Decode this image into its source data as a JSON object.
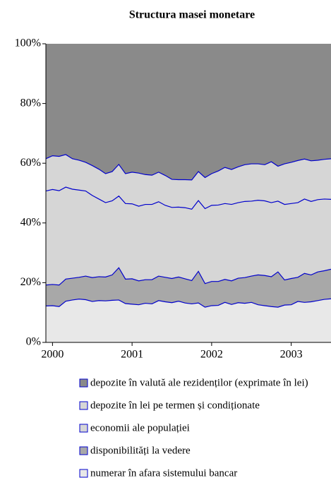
{
  "chart_data": {
    "type": "stacked_area",
    "title": "Structura masei monetare",
    "categories": [
      null,
      "2000",
      null,
      null,
      null,
      null,
      null,
      null,
      null,
      null,
      null,
      null,
      null,
      "2001",
      null,
      null,
      null,
      null,
      null,
      null,
      null,
      null,
      null,
      null,
      null,
      "2002",
      null,
      null,
      null,
      null,
      null,
      null,
      null,
      null,
      null,
      null,
      null,
      "2003",
      null,
      null,
      null,
      null,
      null,
      null
    ],
    "series": [
      {
        "name": "numerar în afara sistemului bancar",
        "color": "#e8e8e8",
        "values": [
          12.2,
          12.3,
          12.0,
          13.8,
          14.2,
          14.5,
          14.3,
          13.7,
          14.0,
          13.9,
          14.1,
          14.2,
          13.0,
          12.8,
          12.6,
          13.1,
          12.9,
          14.0,
          13.6,
          13.3,
          13.8,
          13.2,
          12.9,
          13.2,
          11.8,
          12.3,
          12.4,
          13.4,
          12.7,
          13.3,
          13.1,
          13.4,
          12.6,
          12.3,
          12.0,
          11.8,
          12.5,
          12.6,
          13.7,
          13.4,
          13.6,
          14.0,
          14.4,
          14.6
        ]
      },
      {
        "name": "disponibilități la vedere",
        "color": "#a8a8a8",
        "values": [
          7.0,
          7.1,
          7.2,
          7.4,
          7.3,
          7.3,
          7.9,
          8.0,
          8.0,
          8.0,
          8.5,
          10.8,
          8.2,
          8.5,
          8.0,
          7.9,
          8.1,
          8.2,
          8.2,
          8.1,
          8.1,
          8.1,
          7.8,
          10.6,
          7.9,
          8.1,
          8.0,
          7.7,
          7.9,
          8.2,
          8.6,
          8.8,
          10.0,
          10.1,
          10.0,
          11.8,
          8.4,
          8.8,
          8.1,
          9.7,
          9.0,
          9.6,
          9.6,
          9.9
        ]
      },
      {
        "name": "economii ale populației",
        "color": "#d6d6d6",
        "values": [
          31.5,
          31.8,
          31.6,
          30.8,
          29.8,
          29.2,
          28.5,
          27.5,
          26.0,
          24.9,
          24.8,
          24.0,
          25.3,
          25.1,
          25.0,
          25.2,
          25.2,
          24.9,
          24.1,
          23.8,
          23.4,
          23.8,
          23.9,
          23.7,
          25.1,
          25.5,
          25.6,
          25.4,
          25.6,
          25.3,
          25.5,
          25.1,
          25.0,
          25.0,
          24.8,
          23.7,
          25.3,
          25.1,
          25.0,
          24.9,
          24.6,
          24.2,
          24.0,
          23.4
        ]
      },
      {
        "name": "depozite în lei pe termen și condiționate",
        "color": "#d6d6d6",
        "values": [
          10.8,
          11.3,
          11.5,
          10.9,
          10.2,
          10.0,
          9.6,
          10.0,
          10.0,
          9.7,
          9.8,
          10.6,
          10.0,
          10.6,
          11.1,
          10.0,
          9.8,
          9.9,
          10.0,
          9.4,
          9.2,
          9.4,
          9.8,
          9.7,
          10.4,
          10.6,
          11.4,
          12.1,
          11.7,
          12.0,
          12.3,
          12.5,
          12.2,
          12.1,
          13.7,
          11.7,
          13.6,
          13.8,
          14.1,
          13.4,
          13.6,
          13.2,
          13.3,
          13.6
        ]
      },
      {
        "name": "depozite în valută ale rezidenților (exprimate în lei)",
        "color": "#8a8a8a",
        "values": [
          38.5,
          37.5,
          37.7,
          37.1,
          38.5,
          39.0,
          39.7,
          40.8,
          42.0,
          43.5,
          42.8,
          40.4,
          43.5,
          43.0,
          43.3,
          43.8,
          44.0,
          43.0,
          44.1,
          45.4,
          45.5,
          45.5,
          45.6,
          42.8,
          44.8,
          43.5,
          42.6,
          41.4,
          42.1,
          41.2,
          40.5,
          40.2,
          40.2,
          40.5,
          39.5,
          41.0,
          40.2,
          39.7,
          39.1,
          38.6,
          39.2,
          39.0,
          38.7,
          38.5
        ]
      }
    ],
    "line_color": "#0000cc",
    "ylim": [
      0,
      100
    ],
    "yticks": [
      {
        "value": 0,
        "label": "0%"
      },
      {
        "value": 20,
        "label": "20%"
      },
      {
        "value": 40,
        "label": "40%"
      },
      {
        "value": 60,
        "label": "60%"
      },
      {
        "value": 80,
        "label": "80%"
      },
      {
        "value": 100,
        "label": "100%"
      }
    ]
  }
}
